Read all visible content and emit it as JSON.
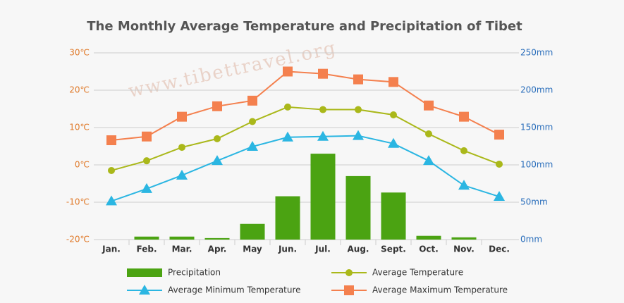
{
  "chart_data": {
    "type": "combo",
    "title": "The Monthly Average Temperature and Precipitation of Tibet",
    "watermark": "www.tibettravel.org",
    "categories": [
      "Jan.",
      "Feb.",
      "Mar.",
      "Apr.",
      "May",
      "Jun.",
      "Jul.",
      "Aug.",
      "Sept.",
      "Oct.",
      "Nov.",
      "Dec."
    ],
    "ylim": [
      -20,
      30
    ],
    "yticks": [
      {
        "value": -20,
        "label": "-20℃"
      },
      {
        "value": -10,
        "label": "-10℃"
      },
      {
        "value": 0,
        "label": "0℃"
      },
      {
        "value": 10,
        "label": "10℃"
      },
      {
        "value": 20,
        "label": "20℃"
      },
      {
        "value": 30,
        "label": "30℃"
      }
    ],
    "y2lim": [
      0,
      250
    ],
    "y2ticks": [
      {
        "value": 0,
        "label": "0mm"
      },
      {
        "value": 50,
        "label": "50mm"
      },
      {
        "value": 100,
        "label": "100mm"
      },
      {
        "value": 150,
        "label": "150mm"
      },
      {
        "value": 200,
        "label": "200mm"
      },
      {
        "value": 250,
        "label": "250mm"
      }
    ],
    "grid": true,
    "series": [
      {
        "name": "Precipitation",
        "type": "bar",
        "axis": "y2",
        "color": "#4ba312",
        "values": [
          0,
          4,
          4,
          2,
          21,
          58,
          115,
          85,
          63,
          5,
          3,
          0
        ]
      },
      {
        "name": "Average Temperature",
        "type": "line",
        "marker": "circle",
        "color": "#aab81a",
        "values": [
          -1.5,
          1.1,
          4.7,
          7.0,
          11.6,
          15.5,
          14.8,
          14.8,
          13.4,
          8.3,
          3.8,
          0.2
        ]
      },
      {
        "name": "Average Minimum Temperature",
        "type": "line",
        "marker": "triangle",
        "color": "#2bb6e2",
        "values": [
          -9.7,
          -6.4,
          -2.8,
          1.1,
          4.9,
          7.4,
          7.6,
          7.8,
          5.7,
          1.1,
          -5.5,
          -8.5
        ]
      },
      {
        "name": "Average Maximum Temperature",
        "type": "line",
        "marker": "square",
        "color": "#f4804e",
        "values": [
          6.6,
          7.6,
          12.9,
          15.7,
          17.2,
          25.0,
          24.4,
          22.9,
          22.2,
          15.9,
          12.9,
          8.1
        ]
      }
    ]
  }
}
